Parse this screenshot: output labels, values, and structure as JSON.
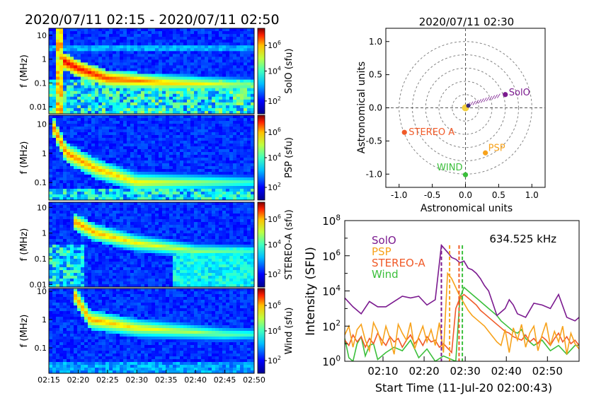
{
  "spectrogram_title": "2020/07/11 02:15 - 2020/07/11 02:50",
  "spectrogram_x_ticks": [
    "02:15",
    "02:20",
    "02:25",
    "02:30",
    "02:35",
    "02:40",
    "02:45",
    "02:50"
  ],
  "panels": [
    {
      "id": "solo",
      "ylabel": "f (MHz)",
      "cbar_label": "SolO (sfu)",
      "yticks": [
        "10",
        "1",
        "0.1",
        "0.01"
      ],
      "cbar_ticks": [
        "10^6",
        "10^4",
        "10^2"
      ]
    },
    {
      "id": "psp",
      "ylabel": "f (MHz)",
      "cbar_label": "PSP (sfu)",
      "yticks": [
        "10",
        "1",
        "0.1"
      ],
      "cbar_ticks": [
        "10^6",
        "10^4",
        "10^2"
      ]
    },
    {
      "id": "stereo",
      "ylabel": "f (MHz)",
      "cbar_label": "STEREO-A (sfu)",
      "yticks": [
        "10",
        "1",
        "0.1",
        "0.01"
      ],
      "cbar_ticks": [
        "10^6",
        "10^4",
        "10^2"
      ]
    },
    {
      "id": "wind",
      "ylabel": "f (MHz)",
      "cbar_label": "Wind (sfu)",
      "yticks": [
        "10",
        "1",
        "0.1"
      ],
      "cbar_ticks": [
        "10^6",
        "10^4",
        "10^2"
      ]
    }
  ],
  "colors": {
    "solo": "#7b1a8f",
    "psp": "#f7a21b",
    "stereo": "#f05a28",
    "wind": "#3bbf3b"
  },
  "chart_data": [
    {
      "type": "heatmap",
      "title": "2020/07/11 02:15 - 2020/07/11 02:50",
      "xlabel": "",
      "ylabel": "f (MHz)",
      "series": [
        {
          "name": "SolO",
          "drift": [
            [
              2.25,
              0.9
            ],
            [
              5,
              0.4
            ],
            [
              10,
              0.15
            ],
            [
              20,
              0.1
            ],
            [
              35,
              0.08
            ]
          ]
        },
        {
          "name": "PSP",
          "drift": [
            [
              0.5,
              10
            ],
            [
              3,
              1
            ],
            [
              8,
              0.3
            ],
            [
              15,
              0.1
            ]
          ]
        },
        {
          "name": "STEREO-A",
          "drift": [
            [
              4,
              3
            ],
            [
              8,
              1
            ],
            [
              15,
              0.4
            ],
            [
              25,
              0.2
            ]
          ]
        },
        {
          "name": "Wind",
          "drift": [
            [
              4.25,
              8
            ],
            [
              7,
              1
            ],
            [
              15,
              0.5
            ],
            [
              30,
              0.3
            ]
          ]
        }
      ]
    },
    {
      "type": "scatter",
      "title": "2020/07/11 02:30",
      "xlabel": "Astronomical units",
      "ylabel": "Astronomical units",
      "xlim": [
        -1.2,
        1.2
      ],
      "ylim": [
        -1.2,
        1.2
      ],
      "xticks": [
        "-1.0",
        "-0.5",
        "0.0",
        "0.5",
        "1.0"
      ],
      "yticks": [
        "1.0",
        "0.5",
        "0.0",
        "-0.5",
        "-1.0"
      ],
      "points": [
        {
          "name": "SolO",
          "x": 0.6,
          "y": 0.2,
          "color": "#7b1a8f"
        },
        {
          "name": "STEREO A",
          "x": -0.92,
          "y": -0.37,
          "color": "#f05a28"
        },
        {
          "name": "PSP",
          "x": 0.3,
          "y": -0.68,
          "color": "#f7a21b"
        },
        {
          "name": "WIND",
          "x": 0.0,
          "y": -1.01,
          "color": "#3bbf3b"
        }
      ]
    },
    {
      "type": "line",
      "title": "634.525 kHz",
      "xlabel": "Start Time (11-Jul-20 02:00:43)",
      "ylabel": "Intensity (SFU)",
      "xticks": [
        "02:10",
        "02:20",
        "02:30",
        "02:40",
        "02:50"
      ],
      "yticks": [
        "10^0",
        "10^2",
        "10^4",
        "10^6",
        "10^8"
      ],
      "xlim": [
        0,
        57
      ],
      "ylim": [
        0,
        8
      ],
      "legend": [
        "SolO",
        "PSP",
        "STEREO-A",
        "Wind"
      ],
      "series": [
        {
          "name": "SolO",
          "color": "#7b1a8f",
          "x": [
            0,
            2,
            4,
            6,
            8,
            10,
            12,
            14,
            16,
            18,
            20,
            22,
            23.5,
            25,
            26,
            27,
            28,
            29,
            30,
            31,
            32,
            33,
            34,
            35,
            36,
            37,
            38,
            39,
            40,
            41,
            42,
            44,
            46,
            48,
            50,
            52,
            54,
            56,
            57
          ],
          "y": [
            3.6,
            3.1,
            2.7,
            3.4,
            3.1,
            3.1,
            3.4,
            3.7,
            3.6,
            3.7,
            3.2,
            3.5,
            6.6,
            6.2,
            5.9,
            5.8,
            5.6,
            5.7,
            5.3,
            5.2,
            5.0,
            4.7,
            4.3,
            4.0,
            3.3,
            2.6,
            2.8,
            3.0,
            3.5,
            3.2,
            2.7,
            2.5,
            3.3,
            3.2,
            3.0,
            3.8,
            2.5,
            2.3,
            2.5
          ]
        },
        {
          "name": "PSP",
          "color": "#f7a21b",
          "x": [
            0,
            1,
            2,
            3,
            4,
            5,
            6,
            7,
            8,
            9,
            10,
            11,
            12,
            13,
            14,
            15,
            16,
            17,
            18,
            19,
            20,
            21,
            22,
            23,
            24,
            25,
            26,
            27,
            28,
            29,
            30,
            31,
            32,
            33,
            34,
            35,
            36,
            37,
            38,
            39,
            40,
            41,
            42,
            43,
            44,
            45,
            46,
            47,
            48,
            49,
            50,
            51,
            52,
            53,
            54,
            55,
            56,
            57
          ],
          "y": [
            1.5,
            2.0,
            0.8,
            1.8,
            2.1,
            1.2,
            0.6,
            2.2,
            1.7,
            0.9,
            2.0,
            1.3,
            0.4,
            2.1,
            1.6,
            1.2,
            2.2,
            0.7,
            1.4,
            2.0,
            1.1,
            1.8,
            0.9,
            2.2,
            0.5,
            5.0,
            4.7,
            4.2,
            3.7,
            3.3,
            2.9,
            2.6,
            2.4,
            2.2,
            2.0,
            1.7,
            1.4,
            1.1,
            0.9,
            1.8,
            0.5,
            1.9,
            1.2,
            2.1,
            0.8,
            1.6,
            2.0,
            0.6,
            1.5,
            2.2,
            0.9,
            1.7,
            1.1,
            2.0,
            0.4,
            1.6,
            1.0,
            0.7
          ]
        },
        {
          "name": "STEREO-A",
          "color": "#f05a28",
          "x": [
            0,
            1,
            2,
            3,
            4,
            5,
            6,
            7,
            8,
            9,
            10,
            11,
            12,
            13,
            14,
            15,
            16,
            17,
            18,
            19,
            20,
            21,
            22,
            23,
            24,
            26,
            27,
            28,
            29,
            30,
            31,
            32,
            33,
            34,
            35,
            36,
            37,
            38,
            39,
            40,
            41,
            42,
            43,
            44,
            45,
            46,
            47,
            48,
            49,
            50,
            51,
            52,
            53,
            54,
            55,
            56,
            57
          ],
          "y": [
            1.2,
            0.9,
            1.5,
            1.1,
            1.4,
            0.8,
            1.3,
            1.0,
            1.6,
            1.2,
            0.9,
            1.4,
            1.1,
            1.3,
            0.8,
            1.2,
            1.5,
            1.0,
            1.3,
            0.9,
            1.4,
            1.1,
            1.2,
            0.8,
            1.0,
            0.5,
            3.0,
            3.6,
            3.8,
            3.6,
            3.4,
            3.2,
            2.9,
            2.7,
            2.5,
            2.3,
            2.1,
            1.9,
            1.7,
            1.6,
            1.4,
            1.3,
            1.2,
            1.5,
            1.1,
            1.3,
            1.0,
            1.4,
            1.2,
            0.9,
            1.3,
            1.6,
            1.1,
            1.4,
            1.0,
            1.2,
            0.9
          ]
        },
        {
          "name": "Wind",
          "color": "#3bbf3b",
          "x": [
            0,
            1,
            2,
            3,
            4,
            5,
            6,
            7,
            8,
            10,
            12,
            14,
            16,
            18,
            20,
            22,
            24,
            27,
            28,
            29,
            30,
            31,
            32,
            33,
            34,
            35,
            36,
            37,
            38,
            39,
            40,
            41,
            42,
            43,
            44,
            46,
            48,
            50,
            52,
            54,
            56,
            57
          ],
          "y": [
            1.3,
            0.2,
            0.0,
            1.0,
            1.4,
            0.3,
            0.9,
            1.0,
            0.1,
            0.5,
            0.8,
            0.6,
            1.2,
            0.2,
            0.7,
            0.0,
            0.3,
            0.0,
            3.6,
            4.2,
            4.0,
            3.8,
            3.6,
            3.4,
            3.2,
            3.0,
            2.8,
            2.6,
            2.3,
            2.1,
            1.9,
            1.7,
            1.6,
            1.8,
            1.3,
            0.9,
            1.2,
            0.6,
            0.9,
            0.4,
            0.9,
            0.9
          ]
        }
      ],
      "vlines": [
        {
          "name": "SolO",
          "x": 23.5,
          "color": "#7b1a8f"
        },
        {
          "name": "PSP",
          "x": 25.5,
          "color": "#f7a21b"
        },
        {
          "name": "STEREO-A",
          "x": 27.8,
          "color": "#f05a28"
        },
        {
          "name": "Wind",
          "x": 28.6,
          "color": "#3bbf3b"
        }
      ]
    }
  ]
}
